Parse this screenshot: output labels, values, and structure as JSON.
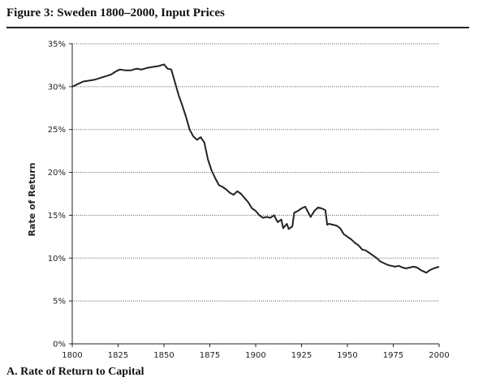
{
  "figure": {
    "title": "Figure 3:  Sweden 1800–2000, Input Prices",
    "caption": "A. Rate of Return to Capital"
  },
  "chart_data": {
    "type": "line",
    "title": "",
    "xlabel": "",
    "ylabel": "Rate of Return",
    "xlim": [
      1800,
      2000
    ],
    "ylim": [
      0,
      35
    ],
    "x_ticks": [
      1800,
      1825,
      1850,
      1875,
      1900,
      1925,
      1950,
      1975,
      2000
    ],
    "y_ticks": [
      0,
      5,
      10,
      15,
      20,
      25,
      30,
      35
    ],
    "y_tick_labels": [
      "0%",
      "5%",
      "10%",
      "15%",
      "20%",
      "25%",
      "30%",
      "35%"
    ],
    "grid": "horizontal dotted",
    "line_color": "#222222",
    "series": [
      {
        "x": [
          1800,
          1803,
          1806,
          1809,
          1812,
          1815,
          1818,
          1821,
          1824,
          1826,
          1829,
          1832,
          1835,
          1838,
          1841,
          1844,
          1847,
          1850,
          1852,
          1854,
          1856,
          1858,
          1860,
          1862,
          1864,
          1866,
          1868,
          1870,
          1872,
          1874,
          1876,
          1878,
          1880,
          1882,
          1884,
          1886,
          1888,
          1890,
          1892,
          1894,
          1896,
          1898,
          1900,
          1902,
          1904,
          1906,
          1908,
          1910,
          1912,
          1914,
          1915,
          1917,
          1918,
          1920,
          1921,
          1923,
          1925,
          1927,
          1929,
          1930,
          1932,
          1934,
          1936,
          1938,
          1939,
          1940,
          1942,
          1944,
          1946,
          1948,
          1950,
          1952,
          1954,
          1956,
          1958,
          1960,
          1962,
          1964,
          1966,
          1968,
          1970,
          1972,
          1974,
          1976,
          1978,
          1980,
          1982,
          1984,
          1986,
          1988,
          1990,
          1992,
          1993,
          1995,
          1997,
          2000
        ],
        "y": [
          30.0,
          30.3,
          30.6,
          30.7,
          30.8,
          31.0,
          31.2,
          31.4,
          31.8,
          32.0,
          31.9,
          31.9,
          32.1,
          32.0,
          32.2,
          32.3,
          32.4,
          32.6,
          32.1,
          32.0,
          30.5,
          29.0,
          27.8,
          26.5,
          25.0,
          24.2,
          23.8,
          24.1,
          23.5,
          21.5,
          20.2,
          19.3,
          18.5,
          18.3,
          18.0,
          17.6,
          17.4,
          17.8,
          17.5,
          17.0,
          16.5,
          15.8,
          15.5,
          15.0,
          14.7,
          14.8,
          14.7,
          15.0,
          14.2,
          14.5,
          13.5,
          14.0,
          13.4,
          13.7,
          15.3,
          15.5,
          15.8,
          16.0,
          15.2,
          14.8,
          15.5,
          15.9,
          15.8,
          15.6,
          13.9,
          14.0,
          13.9,
          13.8,
          13.5,
          12.8,
          12.5,
          12.2,
          11.8,
          11.5,
          11.0,
          10.9,
          10.6,
          10.3,
          10.0,
          9.6,
          9.4,
          9.2,
          9.1,
          9.0,
          9.1,
          8.9,
          8.8,
          8.9,
          9.0,
          8.9,
          8.6,
          8.4,
          8.3,
          8.6,
          8.8,
          9.0
        ]
      }
    ]
  }
}
